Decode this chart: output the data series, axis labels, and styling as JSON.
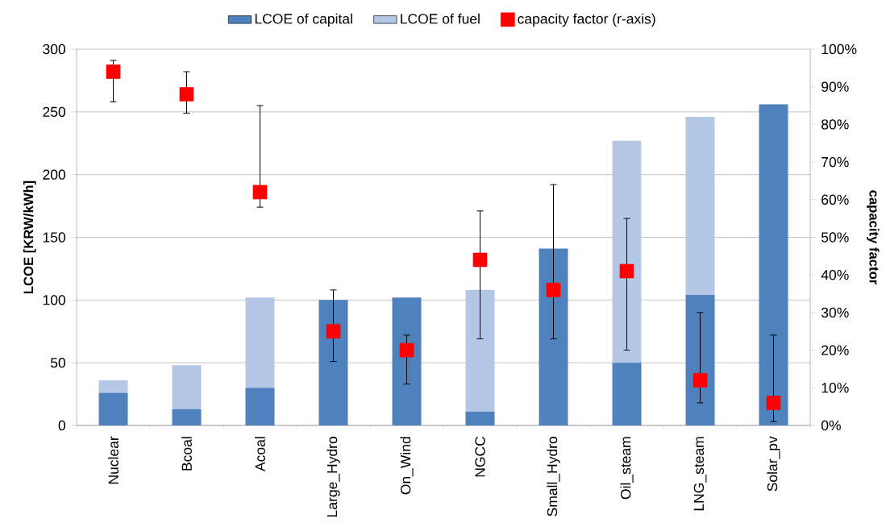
{
  "chart_data": {
    "type": "bar",
    "stacked": true,
    "categories": [
      "Nuclear",
      "Bcoal",
      "Acoal",
      "Large_Hydro",
      "On_Wind",
      "NGCC",
      "Small_Hydro",
      "Oil_steam",
      "LNG_steam",
      "Solar_pv"
    ],
    "series": [
      {
        "name": "LCOE of capital",
        "color": "#4f81bd",
        "values": [
          26,
          13,
          30,
          100,
          102,
          11,
          141,
          50,
          104,
          256
        ]
      },
      {
        "name": "LCOE of fuel",
        "color": "#b4c8e6",
        "values": [
          10,
          35,
          72,
          0,
          0,
          97,
          0,
          177,
          142,
          0
        ]
      },
      {
        "name": "capacity factor (r-axis)",
        "type": "scatter",
        "axis": "y2",
        "color": "#ff0000",
        "marker": "square",
        "values": [
          94,
          88,
          62,
          25,
          20,
          44,
          36,
          41,
          12,
          6
        ],
        "errors": [
          [
            86,
            97
          ],
          [
            83,
            94
          ],
          [
            58,
            85
          ],
          [
            17,
            36
          ],
          [
            11,
            24
          ],
          [
            23,
            57
          ],
          [
            23,
            64
          ],
          [
            20,
            55
          ],
          [
            6,
            30
          ],
          [
            1,
            24
          ]
        ]
      }
    ],
    "ylabel": "LCOE [KRW/kWh]",
    "y2label": "capacity factor",
    "ylim": [
      0,
      300
    ],
    "yticks": [
      0,
      50,
      100,
      150,
      200,
      250,
      300
    ],
    "y2lim": [
      0,
      100
    ],
    "y2ticks": [
      {
        "value": 0,
        "label": "0%"
      },
      {
        "value": 10,
        "label": "10%"
      },
      {
        "value": 20,
        "label": "20%"
      },
      {
        "value": 30,
        "label": "30%"
      },
      {
        "value": 40,
        "label": "40%"
      },
      {
        "value": 50,
        "label": "50%"
      },
      {
        "value": 60,
        "label": "60%"
      },
      {
        "value": 70,
        "label": "70%"
      },
      {
        "value": 80,
        "label": "80%"
      },
      {
        "value": 90,
        "label": "90%"
      },
      {
        "value": 100,
        "label": "100%"
      }
    ],
    "grid": "y",
    "legend": "top"
  }
}
